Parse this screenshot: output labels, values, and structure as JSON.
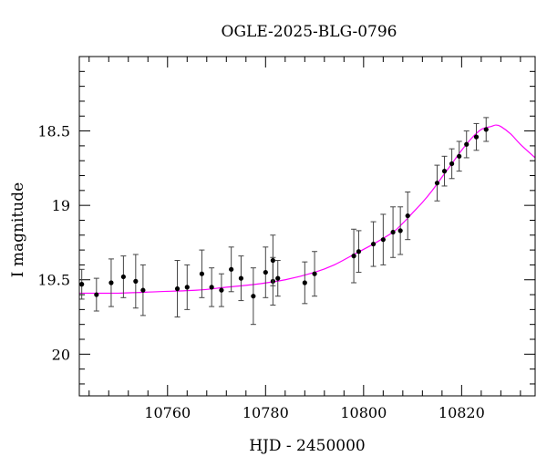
{
  "chart_data": {
    "type": "scatter",
    "title": "OGLE-2025-BLG-0796",
    "xlabel": "HJD - 2450000",
    "ylabel": "I magnitude",
    "xlim": [
      10742,
      10835
    ],
    "ylim": [
      20.28,
      18.0
    ],
    "y_inverted": true,
    "grid": false,
    "x_major_ticks": [
      10760,
      10780,
      10800,
      10820
    ],
    "x_minor_step": 4,
    "y_major_ticks": [
      18.5,
      19,
      19.5,
      20
    ],
    "y_tick_labels": [
      "18.5",
      "19",
      "19.5",
      "20"
    ],
    "y_minor_step": 0.1,
    "colors": {
      "points": "#000000",
      "model": "#ff00ff",
      "axes": "#000000"
    },
    "series": [
      {
        "kind": "points_with_errorbars",
        "points": [
          {
            "x": 10742.5,
            "y": 19.53,
            "err": 0.1
          },
          {
            "x": 10745.5,
            "y": 19.6,
            "err": 0.11
          },
          {
            "x": 10748.5,
            "y": 19.52,
            "err": 0.16
          },
          {
            "x": 10751.0,
            "y": 19.48,
            "err": 0.14
          },
          {
            "x": 10753.5,
            "y": 19.51,
            "err": 0.18
          },
          {
            "x": 10755.0,
            "y": 19.57,
            "err": 0.17
          },
          {
            "x": 10762.0,
            "y": 19.56,
            "err": 0.19
          },
          {
            "x": 10764.0,
            "y": 19.55,
            "err": 0.15
          },
          {
            "x": 10767.0,
            "y": 19.46,
            "err": 0.16
          },
          {
            "x": 10769.0,
            "y": 19.55,
            "err": 0.13
          },
          {
            "x": 10771.0,
            "y": 19.57,
            "err": 0.11
          },
          {
            "x": 10773.0,
            "y": 19.43,
            "err": 0.15
          },
          {
            "x": 10775.0,
            "y": 19.49,
            "err": 0.15
          },
          {
            "x": 10777.5,
            "y": 19.61,
            "err": 0.19
          },
          {
            "x": 10780.0,
            "y": 19.45,
            "err": 0.17
          },
          {
            "x": 10781.5,
            "y": 19.51,
            "err": 0.16
          },
          {
            "x": 10781.5,
            "y": 19.37,
            "err": 0.17
          },
          {
            "x": 10782.5,
            "y": 19.49,
            "err": 0.12
          },
          {
            "x": 10788.0,
            "y": 19.52,
            "err": 0.14
          },
          {
            "x": 10790.0,
            "y": 19.46,
            "err": 0.15
          },
          {
            "x": 10798.0,
            "y": 19.34,
            "err": 0.18
          },
          {
            "x": 10799.0,
            "y": 19.31,
            "err": 0.14
          },
          {
            "x": 10802.0,
            "y": 19.26,
            "err": 0.15
          },
          {
            "x": 10804.0,
            "y": 19.23,
            "err": 0.17
          },
          {
            "x": 10806.0,
            "y": 19.18,
            "err": 0.17
          },
          {
            "x": 10807.5,
            "y": 19.17,
            "err": 0.16
          },
          {
            "x": 10809.0,
            "y": 19.07,
            "err": 0.16
          },
          {
            "x": 10815.0,
            "y": 18.85,
            "err": 0.12
          },
          {
            "x": 10816.5,
            "y": 18.77,
            "err": 0.1
          },
          {
            "x": 10818.0,
            "y": 18.72,
            "err": 0.1
          },
          {
            "x": 10819.5,
            "y": 18.67,
            "err": 0.1
          },
          {
            "x": 10821.0,
            "y": 18.59,
            "err": 0.09
          },
          {
            "x": 10823.0,
            "y": 18.54,
            "err": 0.09
          },
          {
            "x": 10825.0,
            "y": 18.49,
            "err": 0.08
          }
        ]
      },
      {
        "kind": "model_line",
        "x": [
          10742,
          10750,
          10758,
          10766,
          10772,
          10778,
          10784,
          10790,
          10794,
          10798,
          10802,
          10806,
          10808,
          10810,
          10812,
          10814,
          10816,
          10818,
          10820,
          10822,
          10824,
          10826,
          10827,
          10828,
          10830,
          10832,
          10835
        ],
        "y": [
          19.59,
          19.59,
          19.58,
          19.57,
          19.55,
          19.53,
          19.5,
          19.45,
          19.4,
          19.33,
          19.26,
          19.18,
          19.12,
          19.05,
          18.98,
          18.9,
          18.81,
          18.72,
          18.63,
          18.55,
          18.49,
          18.47,
          18.46,
          18.47,
          18.52,
          18.59,
          18.68
        ]
      }
    ]
  }
}
